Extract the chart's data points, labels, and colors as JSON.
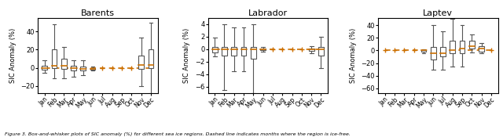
{
  "titles": [
    "Barents",
    "Labrador",
    "Laptev"
  ],
  "months": [
    "Jan",
    "Feb",
    "Mar",
    "Apr",
    "May",
    "Jun",
    "Jul",
    "Aug",
    "Sep",
    "Oct",
    "Nov",
    "Dec"
  ],
  "ylabel": "SIC Anomaly (%)",
  "caption": "Figure 3. Box-and-whisker plots of SIC anomaly (%) for different sea ice regions. Dashed line indicates months where the region is ice-free.",
  "barents": {
    "medians": [
      0,
      2,
      2,
      0,
      -1,
      -1,
      null,
      null,
      null,
      null,
      3,
      3
    ],
    "q1": [
      -2,
      0,
      -1,
      -3,
      -3,
      -2,
      null,
      null,
      null,
      null,
      -1,
      0
    ],
    "q3": [
      2,
      20,
      10,
      2,
      1,
      0,
      null,
      null,
      null,
      null,
      13,
      20
    ],
    "whisker_lo": [
      -6,
      -12,
      -12,
      -10,
      -8,
      -3,
      null,
      null,
      null,
      null,
      -20,
      -28
    ],
    "whisker_hi": [
      8,
      48,
      23,
      8,
      8,
      1,
      null,
      null,
      null,
      2,
      33,
      50
    ],
    "ice_free": [
      false,
      false,
      false,
      false,
      false,
      false,
      true,
      true,
      true,
      true,
      false,
      false
    ]
  },
  "labrador": {
    "medians": [
      0,
      0,
      0,
      0,
      0,
      0,
      null,
      null,
      null,
      null,
      0,
      0
    ],
    "q1": [
      -0.5,
      -1,
      -1,
      -1,
      -1.5,
      -0.1,
      null,
      null,
      null,
      null,
      -0.3,
      -1
    ],
    "q3": [
      0.3,
      0.3,
      0.3,
      0.3,
      0.3,
      0.1,
      null,
      null,
      null,
      null,
      0.1,
      0.3
    ],
    "whisker_lo": [
      -1.2,
      -6.5,
      -3.5,
      -3.5,
      -7,
      -0.4,
      null,
      null,
      null,
      null,
      -0.6,
      -3
    ],
    "whisker_hi": [
      1.8,
      4,
      3.5,
      3.5,
      4,
      0.3,
      null,
      null,
      null,
      null,
      0.5,
      2
    ],
    "ice_free": [
      false,
      false,
      false,
      false,
      false,
      false,
      true,
      true,
      true,
      true,
      false,
      false
    ]
  },
  "laptev": {
    "medians": [
      0,
      0,
      0,
      0,
      0,
      -5,
      -5,
      0,
      3,
      7,
      3,
      0
    ],
    "q1": [
      null,
      null,
      null,
      null,
      -2,
      -15,
      -10,
      -5,
      -5,
      3,
      -2,
      null
    ],
    "q3": [
      null,
      null,
      null,
      null,
      1,
      5,
      5,
      15,
      15,
      15,
      7,
      null
    ],
    "whisker_lo": [
      null,
      null,
      null,
      null,
      -5,
      -30,
      -30,
      -25,
      -25,
      -3,
      -5,
      null
    ],
    "whisker_hi": [
      null,
      null,
      null,
      null,
      2,
      40,
      30,
      50,
      40,
      25,
      12,
      null
    ],
    "ice_free": [
      true,
      true,
      true,
      true,
      false,
      false,
      false,
      false,
      false,
      false,
      false,
      true
    ]
  },
  "dashed_color": "#CC7000",
  "box_edgecolor": "#555555",
  "median_color": "#CC7000",
  "whisker_color": "#555555",
  "marker_color": "#CC7000",
  "ylims": {
    "barents": [
      -28,
      55
    ],
    "labrador": [
      -7,
      5
    ],
    "laptev": [
      -68,
      52
    ]
  },
  "yticks": {
    "barents": [
      -20,
      0,
      20,
      40
    ],
    "labrador": [
      -6,
      -4,
      -2,
      0,
      2,
      4
    ],
    "laptev": [
      -60,
      -40,
      -20,
      0,
      20,
      40
    ]
  }
}
